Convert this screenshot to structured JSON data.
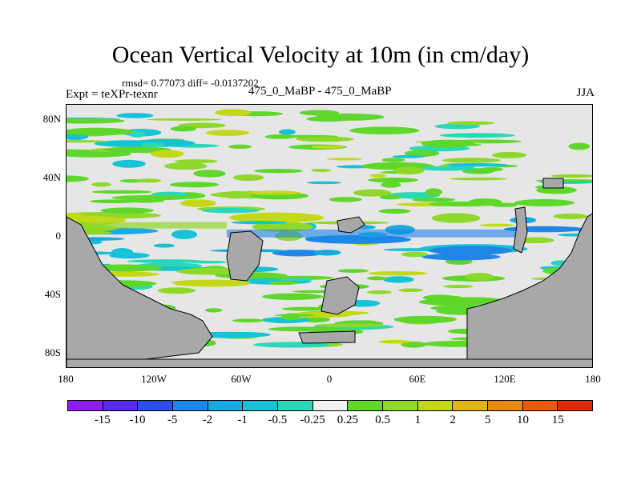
{
  "title": "Ocean Vertical Velocity at 10m (in cm/day)",
  "stats": "rmsd= 0.77073  diff= -0.0137202",
  "expt": "Expt = teXPr-texnr",
  "case": "475_0_MaBP - 475_0_MaBP",
  "season": "JJA",
  "y_ticks": [
    "80N",
    "40N",
    "0",
    "40S",
    "80S"
  ],
  "x_ticks": [
    "180",
    "120W",
    "60W",
    "0",
    "60E",
    "120E",
    "180"
  ],
  "colorbar": {
    "colors": [
      "#8c1ff0",
      "#5a2af0",
      "#2a4ef0",
      "#1f86e8",
      "#1aa8e0",
      "#16c2d6",
      "#2ad8b8",
      "#f2f2f2",
      "#5ed62a",
      "#8ed82a",
      "#c4d81a",
      "#e2b414",
      "#e88a10",
      "#e85a0c",
      "#e02a08"
    ],
    "labels": [
      "-15",
      "-10",
      "-5",
      "-2",
      "-1",
      "-0.5",
      "-0.25",
      "0.25",
      "0.5",
      "1",
      "2",
      "5",
      "10",
      "15"
    ]
  },
  "map_colors": {
    "land": "#a8a8a8",
    "neutral": "#e6e6e6"
  }
}
